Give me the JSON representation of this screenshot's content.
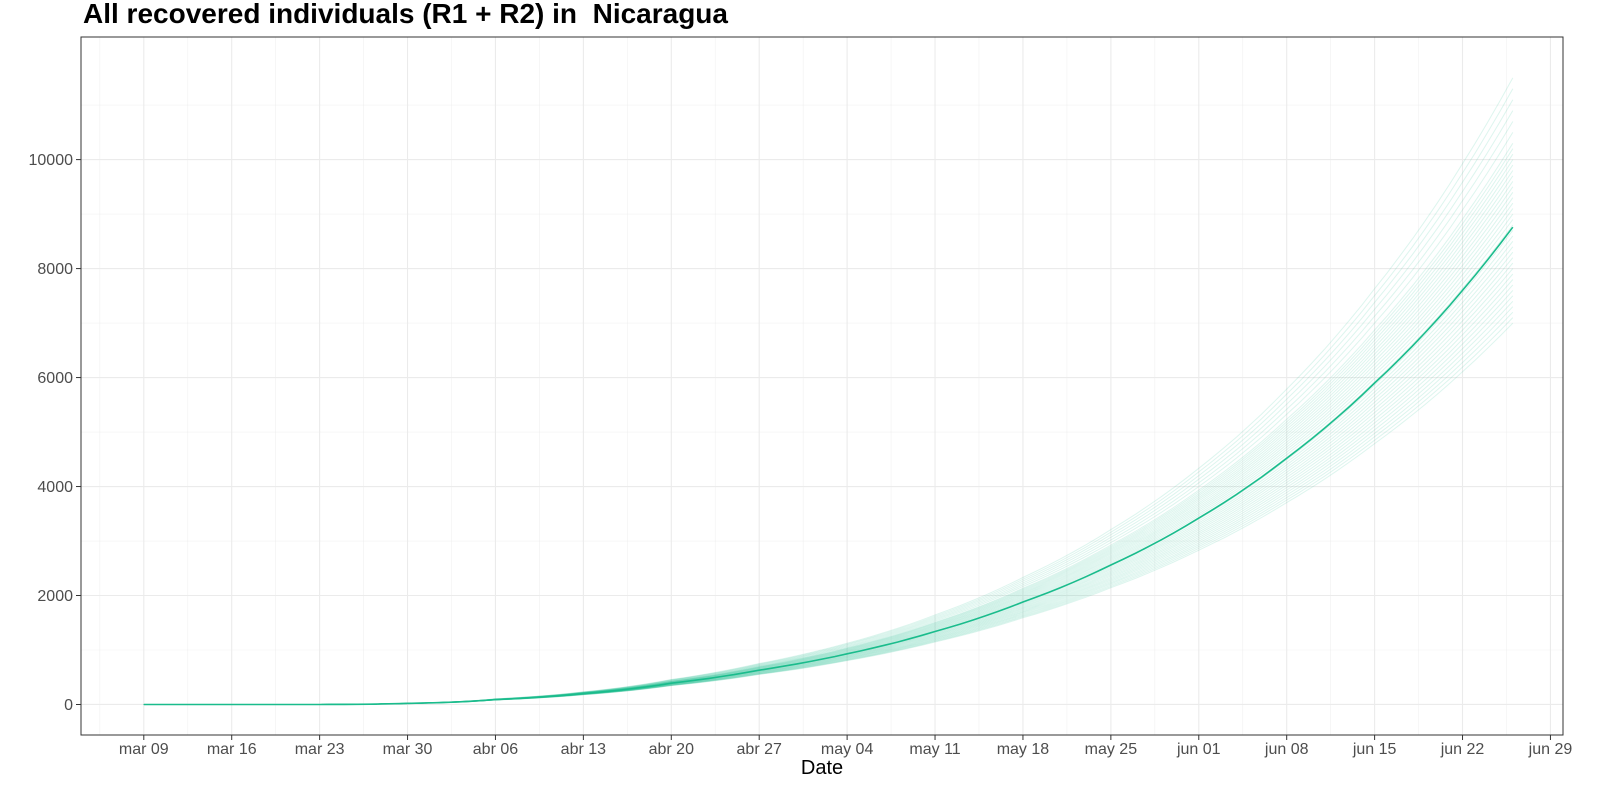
{
  "chart_data": {
    "type": "line",
    "title": "All recovered individuals (R1 + R2) in  Nicaragua",
    "xlabel": "Date",
    "ylabel": "",
    "x_ticks": [
      "mar 09",
      "mar 16",
      "mar 23",
      "mar 30",
      "abr 06",
      "abr 13",
      "abr 20",
      "abr 27",
      "may 04",
      "may 11",
      "may 18",
      "may 25",
      "jun 01",
      "jun 08",
      "jun 15",
      "jun 22",
      "jun 29"
    ],
    "xlim": [
      "2020-03-04",
      "2020-06-30"
    ],
    "ylim": [
      -560,
      12250
    ],
    "y_ticks": [
      0,
      2000,
      4000,
      6000,
      8000,
      10000
    ],
    "grid": true,
    "colors": {
      "main_line": "#1ABC8C",
      "ensemble_line": "#1ABC8C",
      "panel_border": "#333333",
      "grid": "#EBEBEB"
    },
    "x_start": "2020-03-09",
    "x_end": "2020-06-26",
    "series": [
      {
        "role": "central",
        "x": [
          "2020-03-09",
          "2020-03-16",
          "2020-03-23",
          "2020-03-27",
          "2020-03-30",
          "2020-04-06",
          "2020-04-13",
          "2020-04-20",
          "2020-04-27",
          "2020-05-04",
          "2020-05-11",
          "2020-05-18",
          "2020-05-25",
          "2020-06-01",
          "2020-06-08",
          "2020-06-15",
          "2020-06-22",
          "2020-06-26"
        ],
        "values": [
          0,
          0,
          0,
          5,
          20,
          90,
          200,
          390,
          630,
          930,
          1340,
          1880,
          2560,
          3420,
          4520,
          5900,
          7600,
          8760
        ]
      }
    ],
    "ensemble_final_values": [
      7000,
      7100,
      7200,
      7300,
      7400,
      7500,
      7600,
      7700,
      7800,
      7900,
      8000,
      8100,
      8200,
      8300,
      8400,
      8500,
      8600,
      8700,
      8800,
      8900,
      9000,
      9100,
      9200,
      9300,
      9400,
      9500,
      9600,
      9700,
      9800,
      9900,
      10000,
      10100,
      10200,
      10300,
      10500,
      10700,
      10900,
      11100,
      11300,
      11500
    ]
  }
}
